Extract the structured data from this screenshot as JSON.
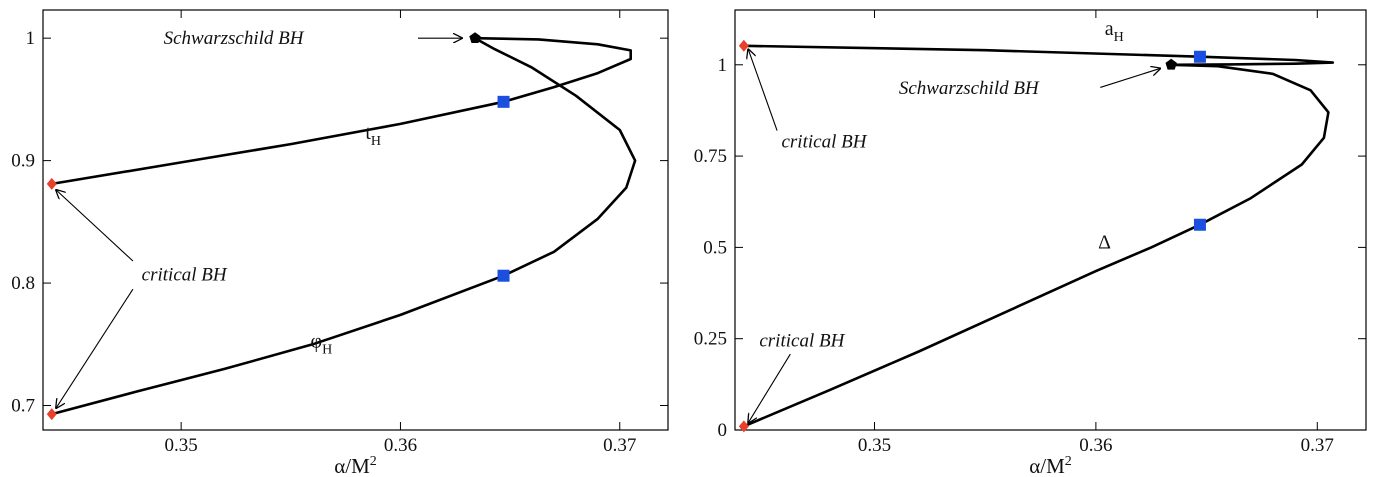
{
  "colors": {
    "curve": "#000000",
    "critical": "#e8402a",
    "square": "#1a4fe0",
    "schwarzschild": "#000000"
  },
  "chart_data": [
    {
      "type": "line",
      "xlabel": "α/M",
      "xlabel_sup": "2",
      "ylabel": "",
      "xlim": [
        0.3437,
        0.3722
      ],
      "ylim": [
        0.68,
        1.023
      ],
      "xticks": [
        0.35,
        0.36,
        0.37
      ],
      "xtick_labels": [
        "0.35",
        "0.36",
        "0.37"
      ],
      "yticks": [
        0.7,
        0.8,
        0.9,
        1.0
      ],
      "ytick_labels": [
        "0.7",
        "0.8",
        "0.9",
        "1"
      ],
      "series": [
        {
          "name": "t",
          "name_sub": "H",
          "x": [
            0.3441,
            0.35,
            0.355,
            0.36,
            0.3647,
            0.367,
            0.369,
            0.3705,
            0.3705,
            0.369,
            0.3663,
            0.3634
          ],
          "y": [
            0.881,
            0.8985,
            0.9135,
            0.93,
            0.948,
            0.96,
            0.9715,
            0.983,
            0.99,
            0.995,
            0.999,
            1.0
          ],
          "label_at": [
            0.3584,
            0.9175
          ]
        },
        {
          "name": "φ",
          "name_sub": "H",
          "x": [
            0.3441,
            0.348,
            0.352,
            0.356,
            0.36,
            0.3647,
            0.367,
            0.369,
            0.3703,
            0.3707,
            0.37,
            0.368,
            0.366,
            0.3643,
            0.3634
          ],
          "y": [
            0.693,
            0.7115,
            0.73,
            0.75,
            0.774,
            0.806,
            0.8255,
            0.8525,
            0.878,
            0.9,
            0.925,
            0.953,
            0.976,
            0.991,
            1.0
          ],
          "label_at": [
            0.3559,
            0.7475
          ]
        }
      ],
      "markers": [
        {
          "kind": "critical",
          "x": 0.3441,
          "y": 0.881
        },
        {
          "kind": "critical",
          "x": 0.3441,
          "y": 0.693
        },
        {
          "kind": "square",
          "x": 0.3647,
          "y": 0.948
        },
        {
          "kind": "square",
          "x": 0.3647,
          "y": 0.806
        },
        {
          "kind": "schwarzschild",
          "x": 0.3634,
          "y": 1.0
        }
      ],
      "annotations": [
        {
          "text": "Schwarzschild BH",
          "text_at": [
            0.3492,
            1.0
          ],
          "anchor": "start",
          "arrows": [
            {
              "from": [
                0.3608,
                1.0
              ],
              "to": [
                0.3628,
                1.0
              ]
            }
          ]
        },
        {
          "text": "critical BH",
          "text_at": [
            0.3482,
            0.807
          ],
          "anchor": "start",
          "arrows": [
            {
              "from": [
                0.3478,
                0.818
              ],
              "to": [
                0.3443,
                0.876
              ]
            },
            {
              "from": [
                0.3478,
                0.795
              ],
              "to": [
                0.3443,
                0.698
              ]
            }
          ]
        }
      ]
    },
    {
      "type": "line",
      "xlabel": "α/M",
      "xlabel_sup": "2",
      "ylabel": "",
      "xlim": [
        0.3437,
        0.3722
      ],
      "ylim": [
        0.0,
        1.15
      ],
      "xticks": [
        0.35,
        0.36,
        0.37
      ],
      "xtick_labels": [
        "0.35",
        "0.36",
        "0.37"
      ],
      "yticks": [
        0,
        0.25,
        0.5,
        0.75,
        1.0
      ],
      "ytick_labels": [
        "0",
        "0.25",
        "0.5",
        "0.75",
        "1"
      ],
      "series": [
        {
          "name": "a",
          "name_sub": "H",
          "x": [
            0.3441,
            0.355,
            0.3647,
            0.369,
            0.3707,
            0.369,
            0.366,
            0.3634
          ],
          "y": [
            1.052,
            1.04,
            1.022,
            1.013,
            1.006,
            1.003,
            1.001,
            1.0
          ],
          "label_at": [
            0.3604,
            1.082
          ]
        },
        {
          "name": "Δ",
          "name_sub": "",
          "x": [
            0.3441,
            0.348,
            0.352,
            0.356,
            0.36,
            0.3625,
            0.3647,
            0.367,
            0.3693,
            0.3703,
            0.3705,
            0.3697,
            0.368,
            0.3655,
            0.3634
          ],
          "y": [
            0.01,
            0.11,
            0.215,
            0.325,
            0.435,
            0.5,
            0.562,
            0.635,
            0.727,
            0.8,
            0.87,
            0.93,
            0.975,
            0.996,
            1.0
          ],
          "label_at": [
            0.3601,
            0.497
          ]
        }
      ],
      "markers": [
        {
          "kind": "critical",
          "x": 0.3441,
          "y": 1.052
        },
        {
          "kind": "critical",
          "x": 0.3441,
          "y": 0.01
        },
        {
          "kind": "square",
          "x": 0.3647,
          "y": 1.022
        },
        {
          "kind": "square",
          "x": 0.3647,
          "y": 0.562
        },
        {
          "kind": "schwarzschild",
          "x": 0.3634,
          "y": 1.0
        }
      ],
      "annotations": [
        {
          "text": "Schwarzschild BH",
          "text_at": [
            0.3511,
            0.936
          ],
          "anchor": "start",
          "arrows": [
            {
              "from": [
                0.3602,
                0.938
              ],
              "to": [
                0.3629,
                0.99
              ]
            }
          ]
        },
        {
          "text": "critical BH",
          "text_at": [
            0.3458,
            0.79
          ],
          "anchor": "start",
          "arrows": [
            {
              "from": [
                0.3456,
                0.82
              ],
              "to": [
                0.3443,
                1.042
              ]
            }
          ]
        },
        {
          "text": "critical BH",
          "text_at": [
            0.3448,
            0.245
          ],
          "anchor": "start",
          "arrows": [
            {
              "from": [
                0.3462,
                0.208
              ],
              "to": [
                0.3443,
                0.02
              ]
            }
          ]
        }
      ]
    }
  ]
}
